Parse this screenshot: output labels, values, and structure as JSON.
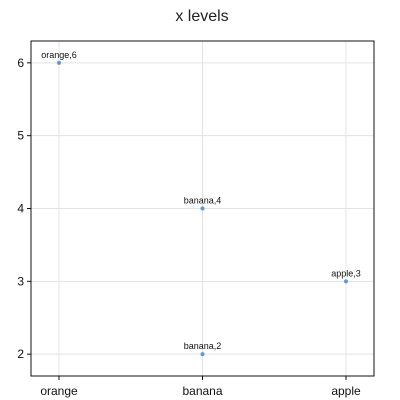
{
  "chart_data": {
    "type": "scatter",
    "title": "x levels",
    "xlabel": "",
    "ylabel": "",
    "categories": [
      "orange",
      "banana",
      "apple"
    ],
    "ylim": [
      1.7,
      6.3
    ],
    "y_ticks": [
      2,
      3,
      4,
      5,
      6
    ],
    "grid": true,
    "points": [
      {
        "x": "orange",
        "y": 6,
        "label": "orange,6"
      },
      {
        "x": "banana",
        "y": 4,
        "label": "banana,4"
      },
      {
        "x": "apple",
        "y": 3,
        "label": "apple,3"
      },
      {
        "x": "banana",
        "y": 2,
        "label": "banana,2"
      }
    ],
    "colors": {
      "point": "#5b9bd5"
    }
  }
}
